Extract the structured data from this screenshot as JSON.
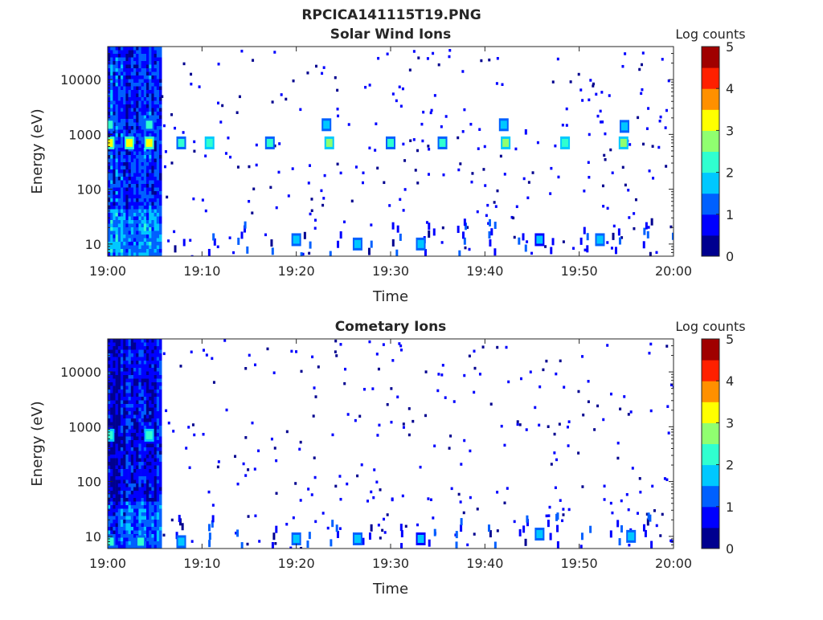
{
  "figure": {
    "title": "RPCICA141115T19.PNG"
  },
  "colorscale": [
    "#00008f",
    "#0000ff",
    "#0060ff",
    "#00c8ff",
    "#30ffd0",
    "#90ff70",
    "#ffff00",
    "#ff9000",
    "#ff2000",
    "#a00000"
  ],
  "chart_data": [
    {
      "type": "heatmap",
      "title": "Solar Wind Ions",
      "xlabel": "Time",
      "ylabel": "Energy (eV)",
      "xlim": [
        "19:00",
        "20:00"
      ],
      "xticks": [
        "19:00",
        "19:10",
        "19:20",
        "19:30",
        "19:40",
        "19:50",
        "20:00"
      ],
      "y_scale": "log",
      "ylim": [
        6,
        40000
      ],
      "yticks": [
        10,
        100,
        1000,
        10000
      ],
      "ytick_labels": [
        "10",
        "100",
        "1000",
        "10000"
      ],
      "colorbar": {
        "label": "Log counts",
        "range": [
          0,
          5
        ],
        "ticks": [
          "0",
          "1",
          "2",
          "3",
          "4",
          "5"
        ]
      },
      "background_band": {
        "t_start_min": 0,
        "t_end_min": 5.6,
        "level": 1.0
      },
      "features": [
        {
          "t_min": 0.2,
          "energy_eV": 700,
          "level": 3.0
        },
        {
          "t_min": 2.3,
          "energy_eV": 700,
          "level": 3.0
        },
        {
          "t_min": 4.4,
          "energy_eV": 700,
          "level": 3.0
        },
        {
          "t_min": 0.2,
          "energy_eV": 1500,
          "level": 2.3
        },
        {
          "t_min": 4.4,
          "energy_eV": 1500,
          "level": 2.3
        },
        {
          "t_min": 7.8,
          "energy_eV": 700,
          "level": 2.2
        },
        {
          "t_min": 10.8,
          "energy_eV": 700,
          "level": 2.4
        },
        {
          "t_min": 17.2,
          "energy_eV": 700,
          "level": 2.0
        },
        {
          "t_min": 23.5,
          "energy_eV": 700,
          "level": 2.6
        },
        {
          "t_min": 30.0,
          "energy_eV": 700,
          "level": 2.0
        },
        {
          "t_min": 35.5,
          "energy_eV": 700,
          "level": 2.3
        },
        {
          "t_min": 42.2,
          "energy_eV": 700,
          "level": 2.6
        },
        {
          "t_min": 48.5,
          "energy_eV": 700,
          "level": 2.4
        },
        {
          "t_min": 54.7,
          "energy_eV": 700,
          "level": 2.6
        },
        {
          "t_min": 23.2,
          "energy_eV": 1500,
          "level": 1.9
        },
        {
          "t_min": 42.0,
          "energy_eV": 1500,
          "level": 1.9
        },
        {
          "t_min": 54.8,
          "energy_eV": 1400,
          "level": 1.9
        },
        {
          "t_min": 20.0,
          "energy_eV": 12,
          "level": 1.8
        },
        {
          "t_min": 26.5,
          "energy_eV": 10,
          "level": 1.9
        },
        {
          "t_min": 33.2,
          "energy_eV": 10,
          "level": 1.8
        },
        {
          "t_min": 45.8,
          "energy_eV": 12,
          "level": 1.7
        },
        {
          "t_min": 52.2,
          "energy_eV": 12,
          "level": 1.8
        }
      ]
    },
    {
      "type": "heatmap",
      "title": "Cometary Ions",
      "xlabel": "Time",
      "ylabel": "Energy (eV)",
      "xlim": [
        "19:00",
        "20:00"
      ],
      "xticks": [
        "19:00",
        "19:10",
        "19:20",
        "19:30",
        "19:40",
        "19:50",
        "20:00"
      ],
      "y_scale": "log",
      "ylim": [
        6,
        40000
      ],
      "yticks": [
        10,
        100,
        1000,
        10000
      ],
      "ytick_labels": [
        "10",
        "100",
        "1000",
        "10000"
      ],
      "colorbar": {
        "label": "Log counts",
        "range": [
          0,
          5
        ],
        "ticks": [
          "0",
          "1",
          "2",
          "3",
          "4",
          "5"
        ]
      },
      "background_band": {
        "t_start_min": 0,
        "t_end_min": 5.6,
        "level": 0.6
      },
      "features": [
        {
          "t_min": 0.2,
          "energy_eV": 700,
          "level": 2.4
        },
        {
          "t_min": 4.4,
          "energy_eV": 700,
          "level": 2.4
        },
        {
          "t_min": 0.3,
          "energy_eV": 8,
          "level": 2.0
        },
        {
          "t_min": 3.5,
          "energy_eV": 8,
          "level": 2.0
        },
        {
          "t_min": 7.8,
          "energy_eV": 8,
          "level": 1.8
        },
        {
          "t_min": 20.0,
          "energy_eV": 9,
          "level": 1.8
        },
        {
          "t_min": 26.5,
          "energy_eV": 9,
          "level": 1.8
        },
        {
          "t_min": 33.2,
          "energy_eV": 9,
          "level": 1.7
        },
        {
          "t_min": 45.8,
          "energy_eV": 11,
          "level": 1.8
        },
        {
          "t_min": 55.5,
          "energy_eV": 10,
          "level": 1.8
        }
      ]
    }
  ]
}
